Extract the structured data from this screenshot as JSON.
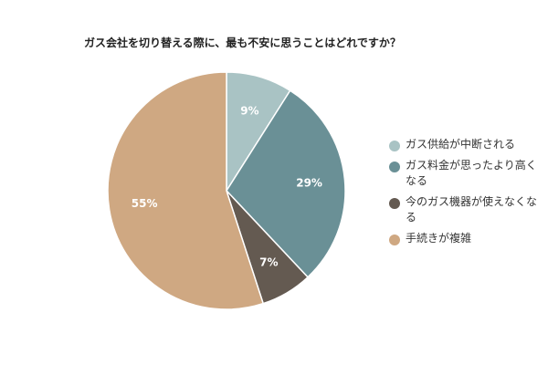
{
  "chart_data": {
    "type": "pie",
    "title": "ガス会社を切り替える際に、最も不安に思うことはどれですか？",
    "categories": [
      "ガス供給が中断される",
      "ガス料金が思ったより高くなる",
      "今のガス機器が使えなくなる",
      "手続きが複雑"
    ],
    "values": [
      9,
      29,
      7,
      55
    ],
    "labels": [
      "9%",
      "29%",
      "7%",
      "55%"
    ],
    "colors": [
      "#a9c3c4",
      "#6a9096",
      "#645a51",
      "#cfa882"
    ],
    "start": "top",
    "direction": "clockwise",
    "legend_position": "right"
  }
}
